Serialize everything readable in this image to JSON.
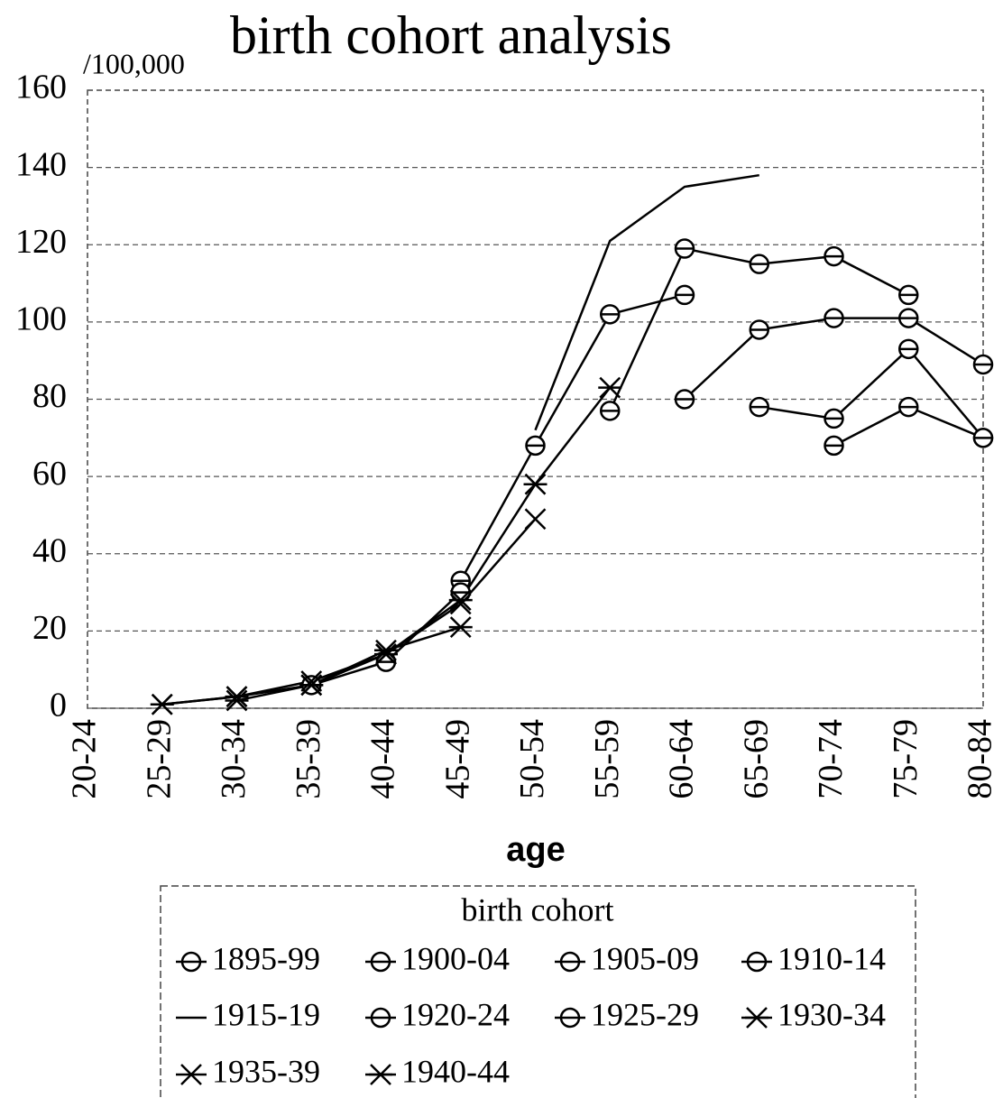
{
  "chart_data": {
    "type": "line",
    "title": "birth cohort analysis",
    "y_unit": "/100,000",
    "x_label": "age",
    "legend_title": "birth cohort",
    "categories": [
      "20-24",
      "25-29",
      "30-34",
      "35-39",
      "40-44",
      "45-49",
      "50-54",
      "55-59",
      "60-64",
      "65-69",
      "70-74",
      "75-79",
      "80-84"
    ],
    "ylim": [
      0,
      160
    ],
    "yticks": [
      0,
      20,
      40,
      60,
      80,
      100,
      120,
      140,
      160
    ],
    "grid": true,
    "series": [
      {
        "name": "1895-99",
        "color": "#000000",
        "marker": "circle",
        "values": [
          null,
          null,
          null,
          null,
          null,
          null,
          null,
          null,
          null,
          null,
          68,
          78,
          70
        ]
      },
      {
        "name": "1900-04",
        "color": "#000000",
        "marker": "circle",
        "values": [
          null,
          null,
          null,
          null,
          null,
          null,
          null,
          null,
          null,
          78,
          75,
          93,
          70
        ]
      },
      {
        "name": "1905-09",
        "color": "#000000",
        "marker": "circle",
        "values": [
          null,
          null,
          null,
          null,
          null,
          null,
          null,
          null,
          80,
          98,
          101,
          101,
          89
        ]
      },
      {
        "name": "1910-14",
        "color": "#000000",
        "marker": "circle",
        "values": [
          null,
          null,
          null,
          null,
          null,
          null,
          null,
          77,
          119,
          115,
          117,
          107,
          null
        ]
      },
      {
        "name": "1915-19",
        "color": "#000000",
        "marker": "none",
        "values": [
          null,
          null,
          null,
          null,
          null,
          null,
          72,
          121,
          135,
          138,
          null,
          null,
          null
        ]
      },
      {
        "name": "1920-24",
        "color": "#000000",
        "marker": "circle",
        "values": [
          null,
          null,
          null,
          null,
          null,
          33,
          68,
          102,
          107,
          null,
          null,
          null,
          null
        ]
      },
      {
        "name": "1925-29",
        "color": "#000000",
        "marker": "circle",
        "values": [
          null,
          null,
          null,
          6,
          12,
          30,
          null,
          null,
          null,
          null,
          null,
          null,
          null
        ]
      },
      {
        "name": "1930-34",
        "color": "#000000",
        "marker": "star",
        "values": [
          null,
          null,
          2,
          6,
          14,
          28,
          58,
          83,
          null,
          null,
          null,
          null,
          null
        ]
      },
      {
        "name": "1935-39",
        "color": "#000000",
        "marker": "x",
        "values": [
          null,
          1,
          3,
          7,
          14,
          27,
          49,
          null,
          null,
          null,
          null,
          null,
          null
        ]
      },
      {
        "name": "1940-44",
        "color": "#000000",
        "marker": "star",
        "values": [
          null,
          1,
          3,
          6,
          15,
          21,
          null,
          null,
          null,
          null,
          null,
          null,
          null
        ]
      }
    ]
  }
}
